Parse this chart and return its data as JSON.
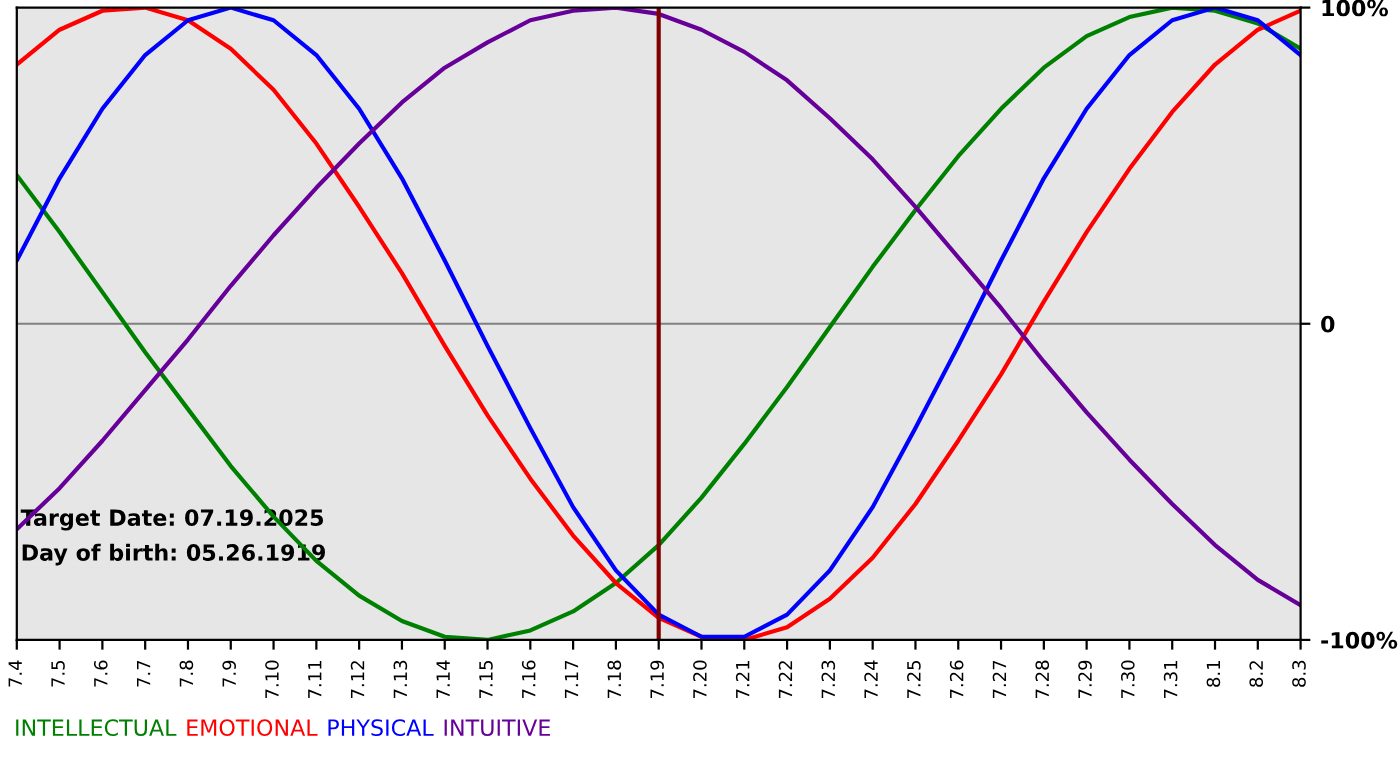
{
  "chart_data": {
    "type": "line",
    "categories": [
      "7.4",
      "7.5",
      "7.6",
      "7.7",
      "7.8",
      "7.9",
      "7.10",
      "7.11",
      "7.12",
      "7.13",
      "7.14",
      "7.15",
      "7.16",
      "7.17",
      "7.18",
      "7.19",
      "7.20",
      "7.21",
      "7.22",
      "7.23",
      "7.24",
      "7.25",
      "7.26",
      "7.27",
      "7.28",
      "7.29",
      "7.30",
      "7.31",
      "8.1",
      "8.2",
      "8.3"
    ],
    "series": [
      {
        "name": "INTELLECTUAL",
        "color": "#008000",
        "values": [
          47,
          29,
          10,
          -9,
          -27,
          -45,
          -61,
          -75,
          -86,
          -94,
          -99,
          -100,
          -97,
          -91,
          -82,
          -70,
          -55,
          -38,
          -20,
          -1,
          18,
          36,
          53,
          68,
          81,
          91,
          97,
          100,
          99,
          95,
          87
        ]
      },
      {
        "name": "EMOTIONAL",
        "color": "#ff0000",
        "values": [
          82,
          93,
          99,
          100,
          96,
          87,
          74,
          57,
          37,
          16,
          -7,
          -29,
          -49,
          -67,
          -82,
          -93,
          -99,
          -100,
          -96,
          -87,
          -74,
          -57,
          -37,
          -16,
          7,
          29,
          49,
          67,
          82,
          93,
          99
        ]
      },
      {
        "name": "PHYSICAL",
        "color": "#0000ff",
        "values": [
          20,
          46,
          68,
          85,
          96,
          100,
          96,
          85,
          68,
          46,
          20,
          -7,
          -33,
          -58,
          -78,
          -92,
          -99,
          -99,
          -92,
          -78,
          -58,
          -33,
          -7,
          20,
          46,
          68,
          85,
          96,
          100,
          96,
          85
        ]
      },
      {
        "name": "INTUITIVE",
        "color": "#660099",
        "values": [
          -65,
          -52,
          -37,
          -21,
          -5,
          12,
          28,
          43,
          57,
          70,
          81,
          89,
          96,
          99,
          100,
          98,
          93,
          86,
          77,
          65,
          52,
          37,
          21,
          5,
          -12,
          -28,
          -43,
          -57,
          -70,
          -81,
          -89
        ]
      }
    ],
    "ylim": [
      -100,
      100
    ],
    "yticks": [
      {
        "value": -100,
        "label": "-100%"
      },
      0,
      {
        "value": 100,
        "label": "100%"
      }
    ],
    "ref_lines": [
      {
        "axis": "x",
        "value": "7.19",
        "color": "#800000"
      },
      {
        "axis": "y",
        "value": 0,
        "color": "#808080"
      }
    ],
    "legend": "bottom left",
    "annotations": [
      "Target Date: 07.19.2025",
      "Day of birth: 05.26.1919"
    ]
  }
}
